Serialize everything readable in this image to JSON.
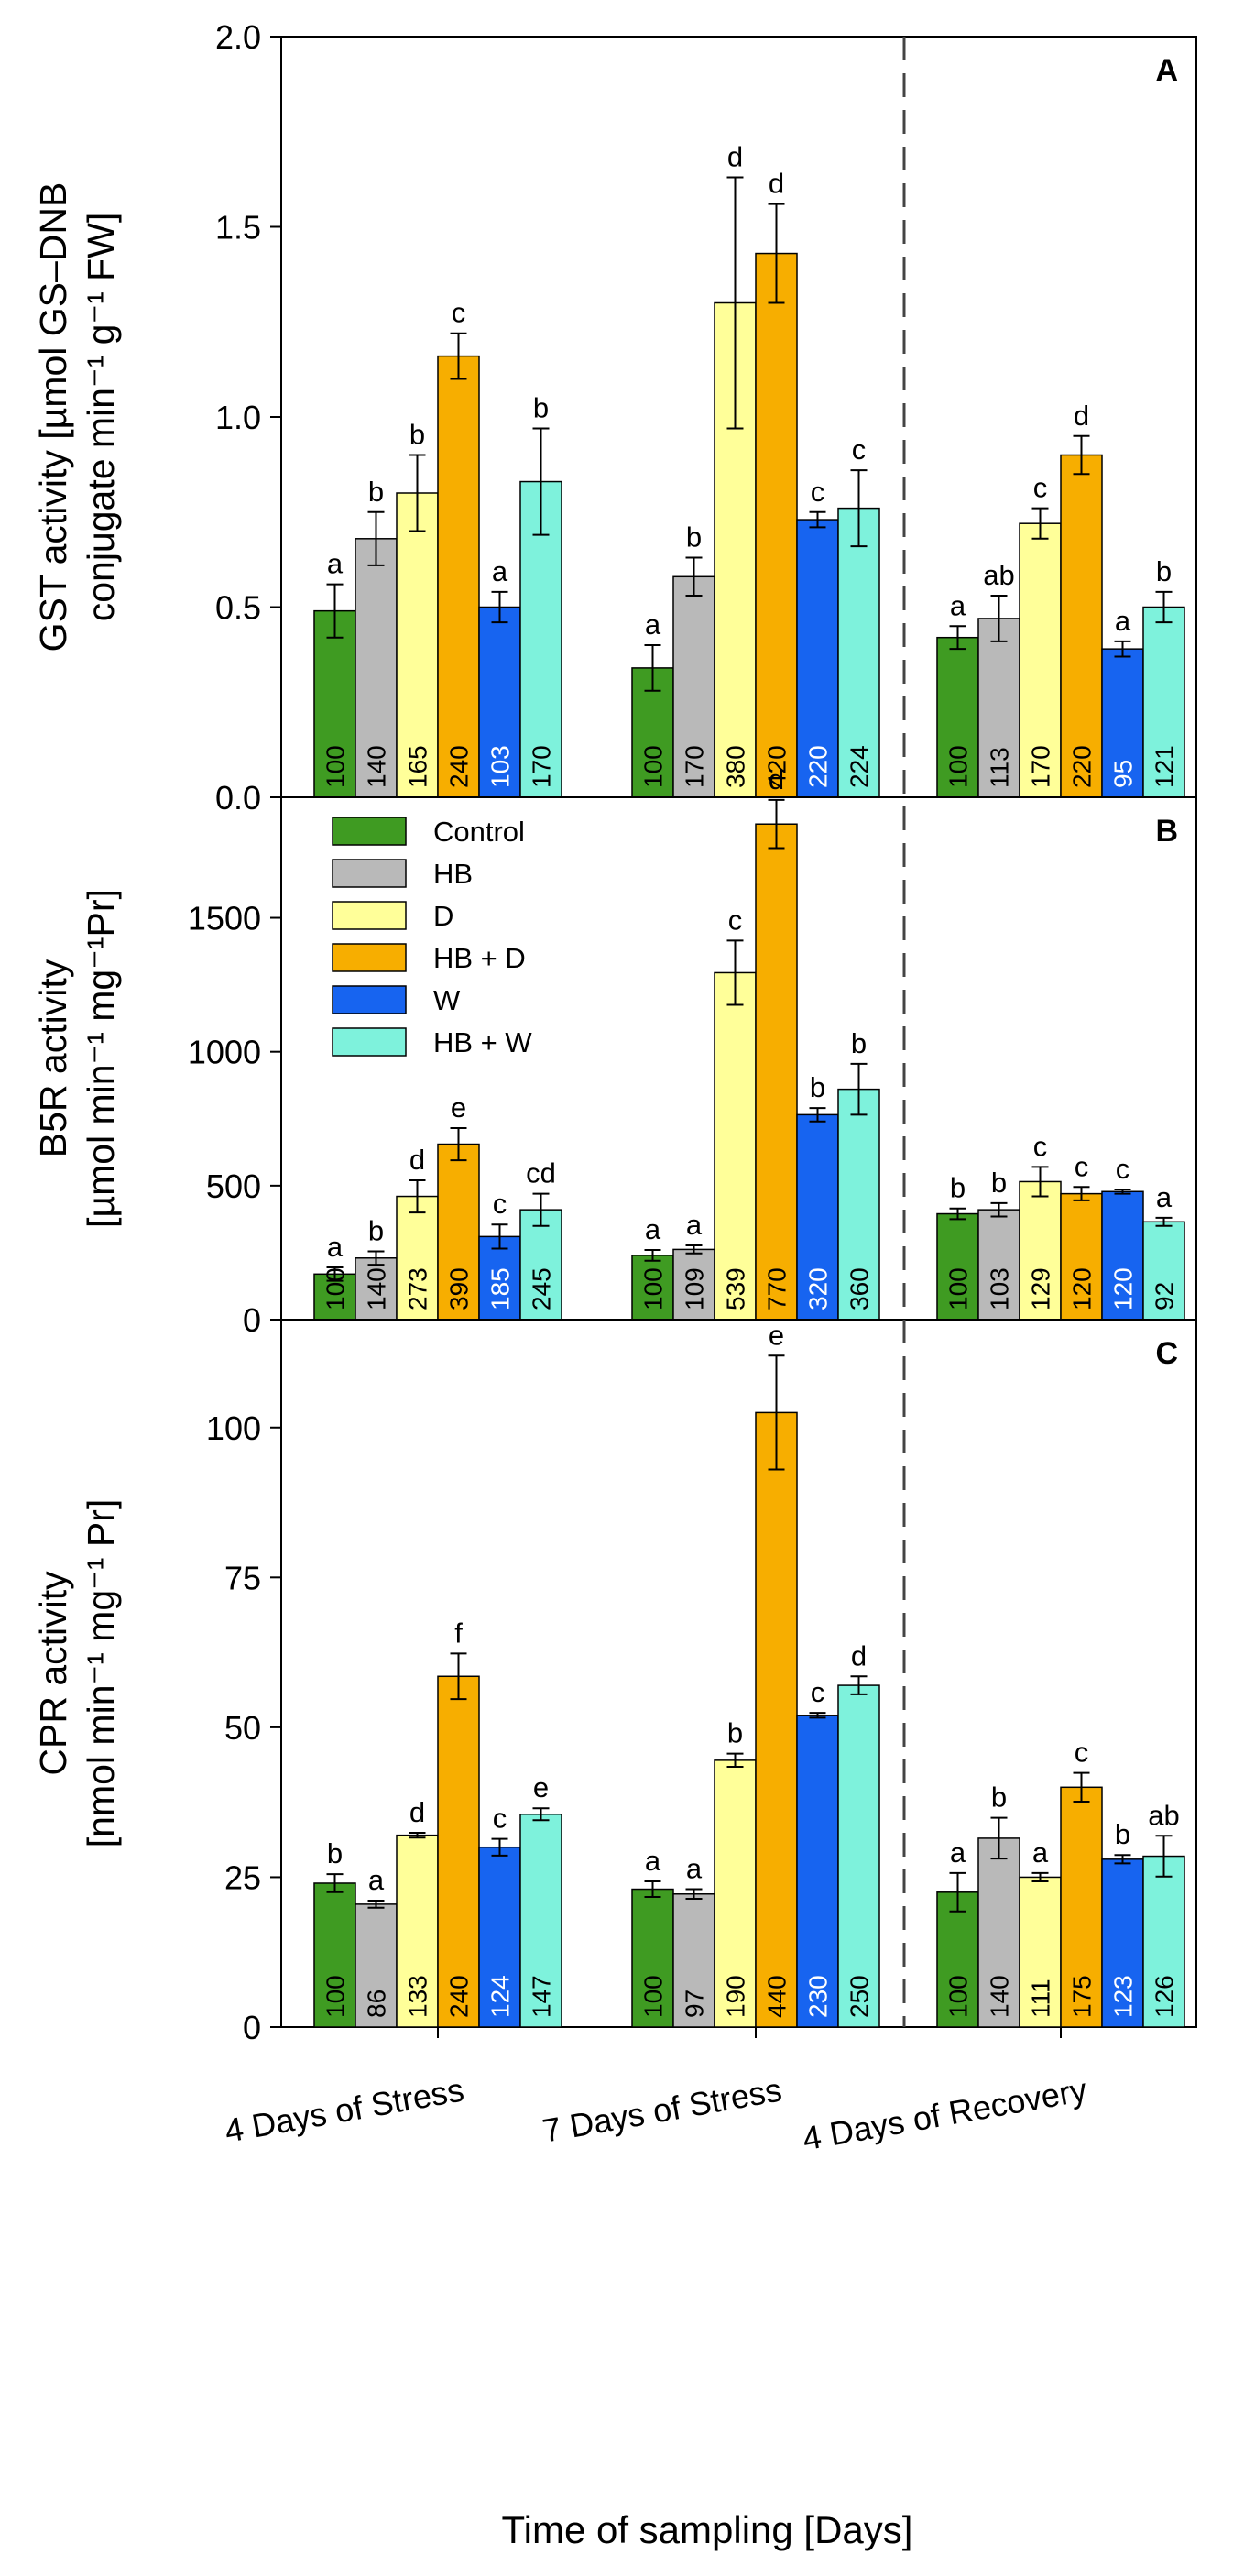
{
  "x_title": "Time of sampling [Days]",
  "legend": [
    {
      "label": "Control",
      "color": "#3f9b22"
    },
    {
      "label": "HB",
      "color": "#b9b9b9"
    },
    {
      "label": "D",
      "color": "#ffff99"
    },
    {
      "label": "HB + D",
      "color": "#f7ae00"
    },
    {
      "label": "W",
      "color": "#1764f0"
    },
    {
      "label": "HB + W",
      "color": "#7ef2dc"
    }
  ],
  "chart_data": [
    {
      "panel": "A",
      "type": "bar",
      "ylabel_line1": "GST activity [µmol GS–DNB",
      "ylabel_line2": "conjugate min⁻¹ g⁻¹ FW]",
      "ylim": [
        0,
        2.0
      ],
      "yticks": [
        0.0,
        0.5,
        1.0,
        1.5,
        2.0
      ],
      "yticklabels": [
        "0.0",
        "0.5",
        "1.0",
        "1.5",
        "2.0"
      ],
      "categories": [
        "4 Days of Stress",
        "7 Days of Stress",
        "4 Days of Recovery"
      ],
      "series": [
        {
          "name": "Control",
          "values": [
            0.49,
            0.34,
            0.42
          ],
          "errors": [
            0.07,
            0.06,
            0.03
          ],
          "letters": [
            "a",
            "a",
            "a"
          ],
          "percent": [
            "100",
            "100",
            "100"
          ]
        },
        {
          "name": "HB",
          "values": [
            0.68,
            0.58,
            0.47
          ],
          "errors": [
            0.07,
            0.05,
            0.06
          ],
          "letters": [
            "b",
            "b",
            "ab"
          ],
          "percent": [
            "140",
            "170",
            "113"
          ]
        },
        {
          "name": "D",
          "values": [
            0.8,
            1.3,
            0.72
          ],
          "errors": [
            0.1,
            0.33,
            0.04
          ],
          "letters": [
            "b",
            "d",
            "c"
          ],
          "percent": [
            "165",
            "380",
            "170"
          ]
        },
        {
          "name": "HB + D",
          "values": [
            1.16,
            1.43,
            0.9
          ],
          "errors": [
            0.06,
            0.13,
            0.05
          ],
          "letters": [
            "c",
            "d",
            "d"
          ],
          "percent": [
            "240",
            "420",
            "220"
          ]
        },
        {
          "name": "W",
          "values": [
            0.5,
            0.73,
            0.39
          ],
          "errors": [
            0.04,
            0.02,
            0.02
          ],
          "letters": [
            "a",
            "c",
            "a"
          ],
          "percent": [
            "103",
            "220",
            "95"
          ]
        },
        {
          "name": "HB + W",
          "values": [
            0.83,
            0.76,
            0.5
          ],
          "errors": [
            0.14,
            0.1,
            0.04
          ],
          "letters": [
            "b",
            "c",
            "b"
          ],
          "percent": [
            "170",
            "224",
            "121"
          ]
        }
      ]
    },
    {
      "panel": "B",
      "type": "bar",
      "ylabel_line1": "B5R activity",
      "ylabel_line2": "[µmol min⁻¹ mg⁻¹Pr]",
      "ylim": [
        0,
        1950
      ],
      "yticks": [
        0,
        500,
        1000,
        1500
      ],
      "yticklabels": [
        "0",
        "500",
        "1000",
        "1500"
      ],
      "categories": [
        "4 Days of Stress",
        "7 Days of Stress",
        "4 Days of Recovery"
      ],
      "series": [
        {
          "name": "Control",
          "values": [
            170,
            240,
            395
          ],
          "errors": [
            25,
            20,
            20
          ],
          "letters": [
            "a",
            "a",
            "b"
          ],
          "percent": [
            "100",
            "100",
            "100"
          ]
        },
        {
          "name": "HB",
          "values": [
            230,
            262,
            410
          ],
          "errors": [
            25,
            15,
            25
          ],
          "letters": [
            "b",
            "a",
            "b"
          ],
          "percent": [
            "140",
            "109",
            "103"
          ]
        },
        {
          "name": "D",
          "values": [
            460,
            1295,
            515
          ],
          "errors": [
            60,
            120,
            55
          ],
          "letters": [
            "d",
            "c",
            "c"
          ],
          "percent": [
            "273",
            "539",
            "129"
          ]
        },
        {
          "name": "HB + D",
          "values": [
            655,
            1850,
            470
          ],
          "errors": [
            60,
            90,
            25
          ],
          "letters": [
            "e",
            "d",
            "c"
          ],
          "percent": [
            "390",
            "770",
            "120"
          ]
        },
        {
          "name": "W",
          "values": [
            310,
            765,
            478
          ],
          "errors": [
            45,
            25,
            8
          ],
          "letters": [
            "c",
            "b",
            "c"
          ],
          "percent": [
            "185",
            "320",
            "120"
          ]
        },
        {
          "name": "HB + W",
          "values": [
            410,
            860,
            365
          ],
          "errors": [
            60,
            95,
            15
          ],
          "letters": [
            "cd",
            "b",
            "a"
          ],
          "percent": [
            "245",
            "360",
            "92"
          ]
        }
      ]
    },
    {
      "panel": "C",
      "type": "bar",
      "ylabel_line1": "CPR activity",
      "ylabel_line2": "[nmol min⁻¹ mg⁻¹ Pr]",
      "ylim": [
        0,
        118
      ],
      "yticks": [
        0,
        25,
        50,
        75,
        100
      ],
      "yticklabels": [
        "0",
        "25",
        "50",
        "75",
        "100"
      ],
      "categories": [
        "4 Days of Stress",
        "7 Days of Stress",
        "4 Days of Recovery"
      ],
      "series": [
        {
          "name": "Control",
          "values": [
            24,
            23,
            22.5
          ],
          "errors": [
            1.5,
            1.3,
            3.2
          ],
          "letters": [
            "b",
            "a",
            "a"
          ],
          "percent": [
            "100",
            "100",
            "100"
          ]
        },
        {
          "name": "HB",
          "values": [
            20.5,
            22.2,
            31.5
          ],
          "errors": [
            0.6,
            0.8,
            3.4
          ],
          "letters": [
            "a",
            "a",
            "b"
          ],
          "percent": [
            "86",
            "97",
            "140"
          ]
        },
        {
          "name": "D",
          "values": [
            32,
            44.5,
            25
          ],
          "errors": [
            0.4,
            1.1,
            0.7
          ],
          "letters": [
            "d",
            "b",
            "a"
          ],
          "percent": [
            "133",
            "190",
            "111"
          ]
        },
        {
          "name": "HB + D",
          "values": [
            58.5,
            102.5,
            40
          ],
          "errors": [
            3.8,
            9.5,
            2.4
          ],
          "letters": [
            "f",
            "e",
            "c"
          ],
          "percent": [
            "240",
            "440",
            "175"
          ]
        },
        {
          "name": "W",
          "values": [
            30,
            52,
            28
          ],
          "errors": [
            1.4,
            0.4,
            0.7
          ],
          "letters": [
            "c",
            "c",
            "b"
          ],
          "percent": [
            "124",
            "230",
            "123"
          ]
        },
        {
          "name": "HB + W",
          "values": [
            35.5,
            57,
            28.5
          ],
          "errors": [
            1.0,
            1.5,
            3.4
          ],
          "letters": [
            "e",
            "d",
            "ab"
          ],
          "percent": [
            "147",
            "250",
            "126"
          ]
        }
      ]
    }
  ]
}
